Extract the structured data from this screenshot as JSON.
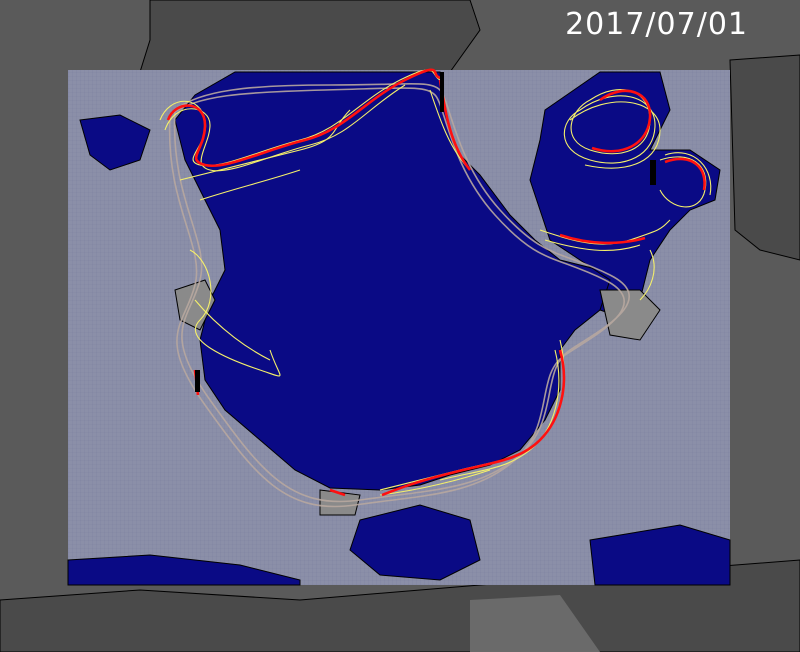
{
  "map": {
    "date": "2017/07/01",
    "colors": {
      "background_land": "#5a5a5a",
      "model_domain": "#8b8fa8",
      "ocean_ice": "#0a0a85",
      "coastline": "#000000",
      "ensemble_member_line": "#f5f06a",
      "ensemble_mean_line": "#ff1010",
      "climatology_line": "#b8a8a0"
    }
  }
}
